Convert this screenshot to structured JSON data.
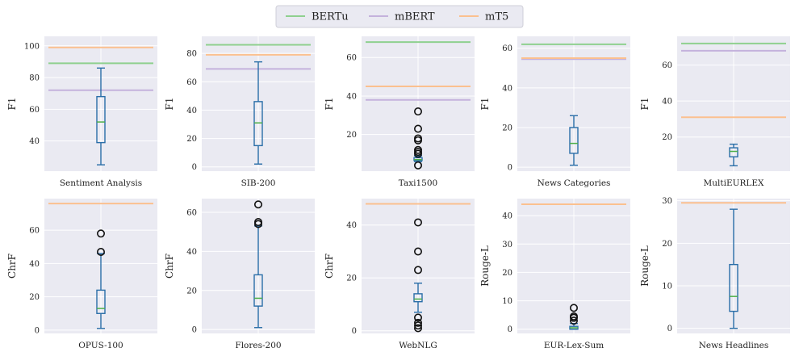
{
  "legend": {
    "items": [
      {
        "label": "BERTu",
        "color": "#8fd08f"
      },
      {
        "label": "mBERT",
        "color": "#c4b2dc"
      },
      {
        "label": "mT5",
        "color": "#fbc08f"
      }
    ]
  },
  "colors": {
    "box": "#2a6ea8",
    "median": "#4daf4a",
    "panel_bg": "#eaeaf2",
    "grid": "#ffffff"
  },
  "chart_data": [
    {
      "type": "box",
      "title": "",
      "xlabel": "Sentiment Analysis",
      "ylabel": "F1",
      "ylim": [
        21,
        106
      ],
      "yticks": [
        40,
        60,
        80,
        100
      ],
      "box": {
        "whislo": 25,
        "q1": 39,
        "med": 52,
        "q3": 68,
        "whishi": 86,
        "fliers": []
      },
      "refs": {
        "BERTu": 89,
        "mBERT": 72,
        "mT5": 99
      }
    },
    {
      "type": "box",
      "title": "",
      "xlabel": "SIB-200",
      "ylabel": "F1",
      "ylim": [
        -3,
        92
      ],
      "yticks": [
        0,
        20,
        40,
        60,
        80
      ],
      "box": {
        "whislo": 2,
        "q1": 15,
        "med": 31,
        "q3": 46,
        "whishi": 74,
        "fliers": []
      },
      "refs": {
        "BERTu": 86,
        "mBERT": 69,
        "mT5": 79
      }
    },
    {
      "type": "box",
      "title": "",
      "xlabel": "Taxi1500",
      "ylabel": "F1",
      "ylim": [
        1,
        71
      ],
      "yticks": [
        20,
        40,
        60
      ],
      "box": {
        "whislo": 6,
        "q1": 6.5,
        "med": 7,
        "q3": 8,
        "whishi": 9,
        "fliers": [
          4,
          10,
          11,
          12,
          17,
          18,
          23,
          32
        ]
      },
      "refs": {
        "BERTu": 68,
        "mBERT": 38,
        "mT5": 45
      }
    },
    {
      "type": "box",
      "title": "",
      "xlabel": "News Categories",
      "ylabel": "F1",
      "ylim": [
        -2,
        66
      ],
      "yticks": [
        0,
        20,
        40,
        60
      ],
      "box": {
        "whislo": 1,
        "q1": 7,
        "med": 12,
        "q3": 20,
        "whishi": 26,
        "fliers": []
      },
      "refs": {
        "BERTu": 62,
        "mBERT": 54.5,
        "mT5": 55
      }
    },
    {
      "type": "box",
      "title": "",
      "xlabel": "MultiEURLEX",
      "ylabel": "F1",
      "ylim": [
        1,
        76
      ],
      "yticks": [
        20,
        40,
        60
      ],
      "box": {
        "whislo": 4,
        "q1": 9,
        "med": 12,
        "q3": 14,
        "whishi": 16,
        "fliers": []
      },
      "refs": {
        "BERTu": 72,
        "mBERT": 68,
        "mT5": 31
      }
    },
    {
      "type": "box",
      "title": "",
      "xlabel": "OPUS-100",
      "ylabel": "ChrF",
      "ylim": [
        -2,
        79
      ],
      "yticks": [
        0,
        20,
        40,
        60
      ],
      "box": {
        "whislo": 1,
        "q1": 10,
        "med": 13,
        "q3": 24,
        "whishi": 46,
        "fliers": [
          47,
          58
        ]
      },
      "refs": {
        "BERTu": null,
        "mBERT": null,
        "mT5": 76
      }
    },
    {
      "type": "box",
      "title": "",
      "xlabel": "Flores-200",
      "ylabel": "ChrF",
      "ylim": [
        -2,
        67
      ],
      "yticks": [
        0,
        20,
        40,
        60
      ],
      "box": {
        "whislo": 1,
        "q1": 12,
        "med": 16,
        "q3": 28,
        "whishi": 53,
        "fliers": [
          54,
          55,
          64
        ]
      },
      "refs": {
        "BERTu": null,
        "mBERT": null,
        "mT5": null
      }
    },
    {
      "type": "box",
      "title": "",
      "xlabel": "WebNLG",
      "ylabel": "ChrF",
      "ylim": [
        -1,
        50
      ],
      "yticks": [
        0,
        20,
        40
      ],
      "box": {
        "whislo": 7,
        "q1": 11,
        "med": 12,
        "q3": 14,
        "whishi": 18,
        "fliers": [
          1,
          2,
          3,
          5,
          23,
          30,
          41
        ]
      },
      "refs": {
        "BERTu": null,
        "mBERT": null,
        "mT5": 48
      }
    },
    {
      "type": "box",
      "title": "",
      "xlabel": "EUR-Lex-Sum",
      "ylabel": "Rouge-L",
      "ylim": [
        -1.5,
        46
      ],
      "yticks": [
        0,
        10,
        20,
        30,
        40
      ],
      "box": {
        "whislo": 0,
        "q1": 0,
        "med": 0.5,
        "q3": 1,
        "whishi": 2,
        "fliers": [
          3,
          4,
          4.5,
          7.5
        ]
      },
      "refs": {
        "BERTu": null,
        "mBERT": null,
        "mT5": 44
      }
    },
    {
      "type": "box",
      "title": "",
      "xlabel": "News Headlines",
      "ylabel": "Rouge-L",
      "ylim": [
        -1.2,
        30.5
      ],
      "yticks": [
        0,
        10,
        20,
        30
      ],
      "box": {
        "whislo": 0,
        "q1": 4,
        "med": 7.5,
        "q3": 15,
        "whishi": 28,
        "fliers": []
      },
      "refs": {
        "BERTu": null,
        "mBERT": null,
        "mT5": 29.5
      }
    }
  ]
}
